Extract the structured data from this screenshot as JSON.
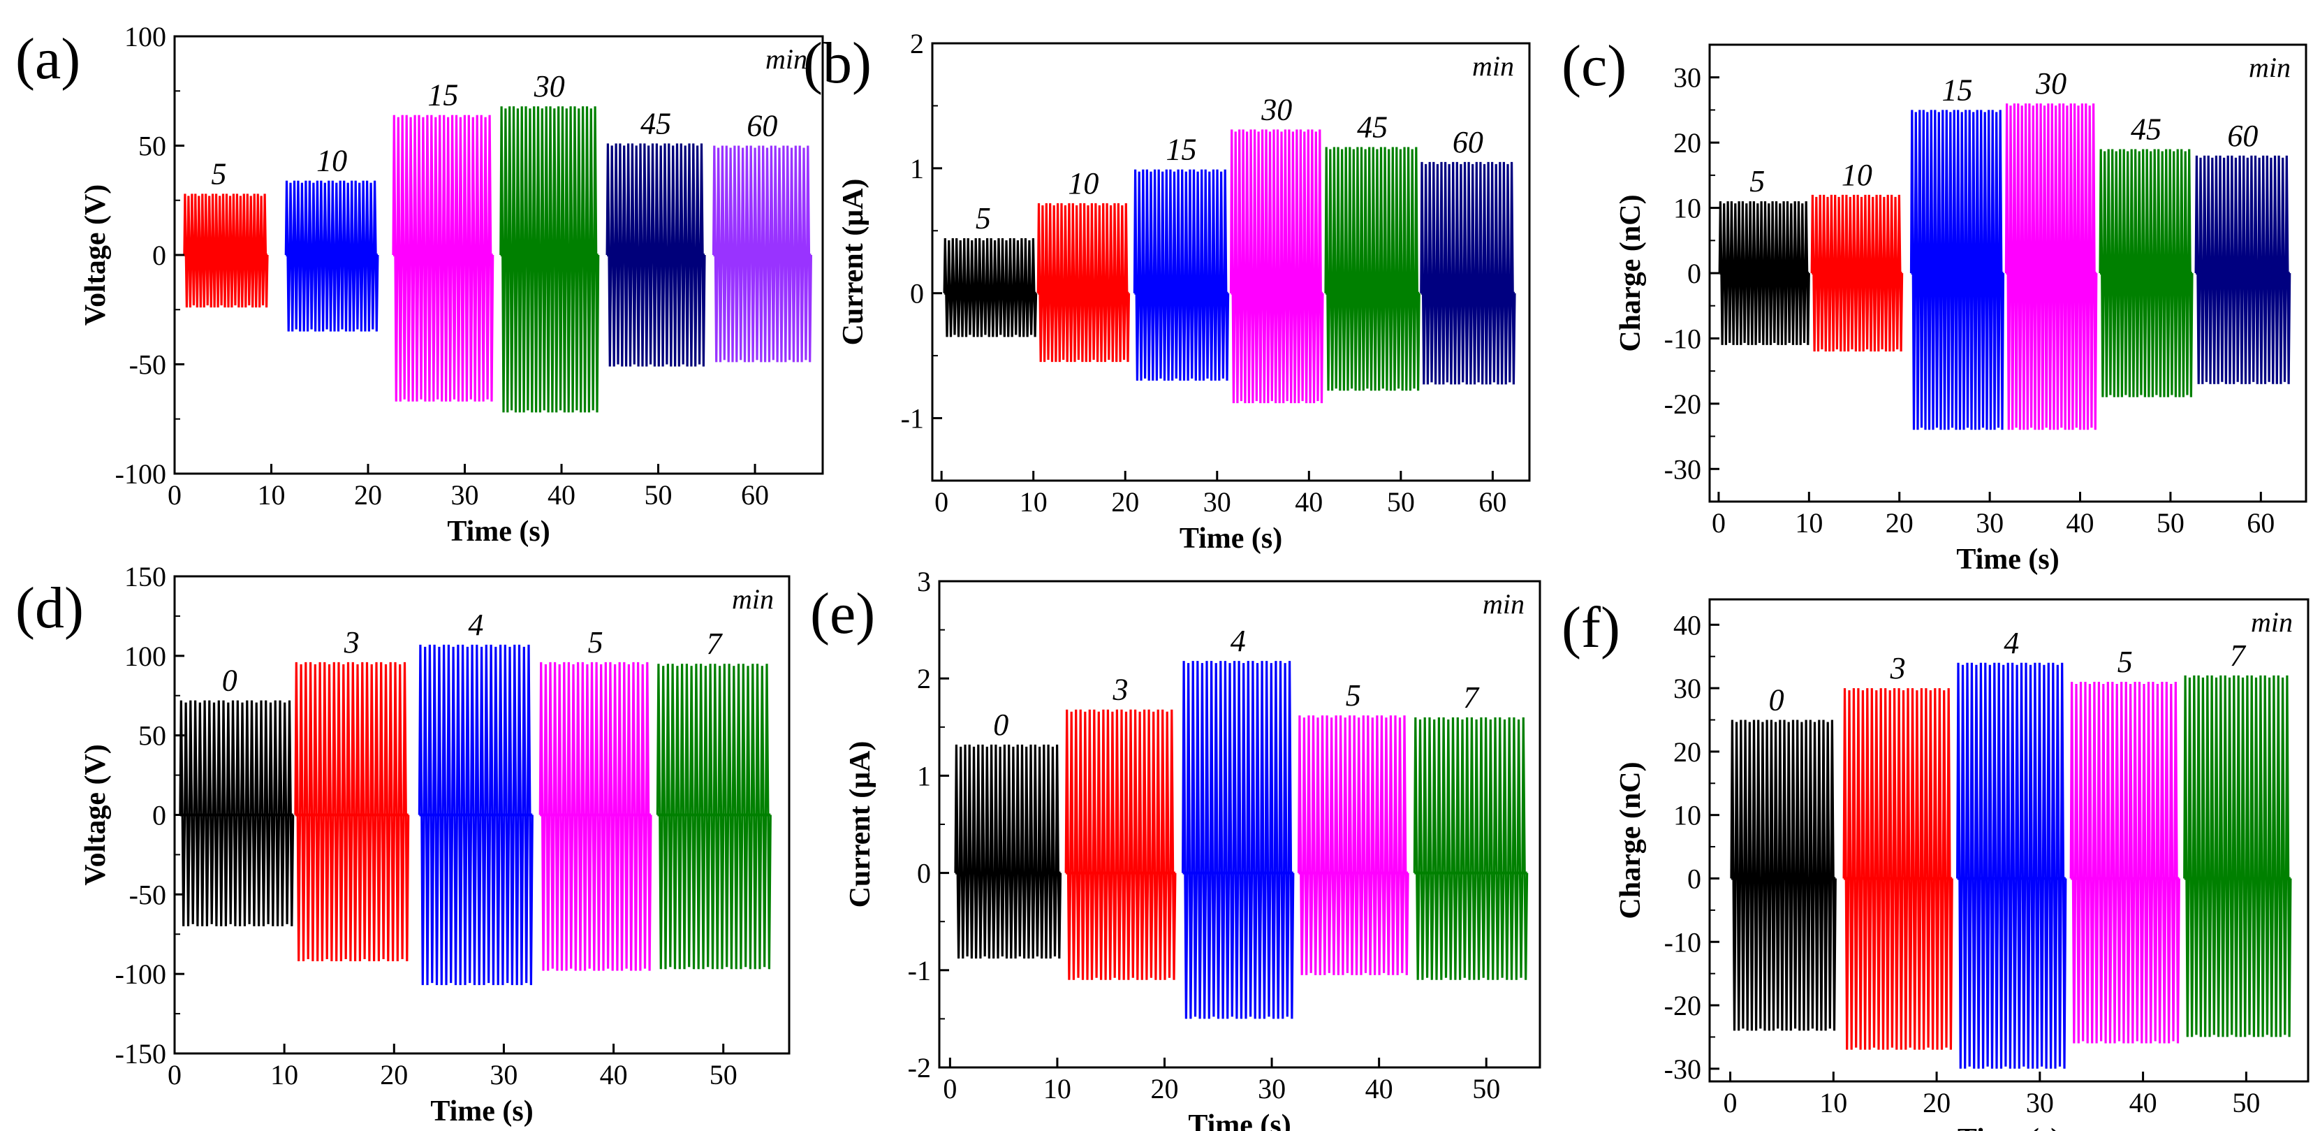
{
  "figure": {
    "unit_label": "min"
  },
  "chart_data": [
    {
      "type": "line",
      "panel": "(a)",
      "xlabel": "Time (s)",
      "ylabel": "Voltage (V)",
      "xlim": [
        0,
        67
      ],
      "ylim": [
        -100,
        100
      ],
      "xticks": [
        0,
        10,
        20,
        30,
        40,
        50,
        60
      ],
      "yticks": [
        -100,
        -50,
        0,
        50,
        100
      ],
      "blocks": [
        {
          "label": "5",
          "color": "#ff0000",
          "x0": 1.0,
          "x1": 9.6,
          "min": -24,
          "max": 28
        },
        {
          "label": "10",
          "color": "#0000ff",
          "x0": 11.5,
          "x1": 21.0,
          "min": -35,
          "max": 34
        },
        {
          "label": "15",
          "color": "#ff00ff",
          "x0": 22.6,
          "x1": 32.9,
          "min": -67,
          "max": 64
        },
        {
          "label": "30",
          "color": "#008000",
          "x0": 33.7,
          "x1": 43.8,
          "min": -72,
          "max": 68
        },
        {
          "label": "45",
          "color": "#00007a",
          "x0": 44.7,
          "x1": 54.8,
          "min": -51,
          "max": 51
        },
        {
          "label": "60",
          "color": "#9933ff",
          "x0": 55.7,
          "x1": 65.8,
          "min": -49,
          "max": 50
        }
      ]
    },
    {
      "type": "line",
      "panel": "(b)",
      "xlabel": "Time (s)",
      "ylabel": "Current (μA)",
      "xlim": [
        -1,
        64
      ],
      "ylim": [
        -1.5,
        2
      ],
      "xticks": [
        0,
        10,
        20,
        30,
        40,
        50,
        60
      ],
      "yticks": [
        -1,
        0,
        1,
        2
      ],
      "blocks": [
        {
          "label": "5",
          "color": "#000000",
          "x0": 0.3,
          "x1": 10.3,
          "min": -0.35,
          "max": 0.44
        },
        {
          "label": "10",
          "color": "#ff0000",
          "x0": 10.5,
          "x1": 20.4,
          "min": -0.55,
          "max": 0.72
        },
        {
          "label": "15",
          "color": "#0000ff",
          "x0": 21.0,
          "x1": 31.2,
          "min": -0.7,
          "max": 0.99
        },
        {
          "label": "30",
          "color": "#ff00ff",
          "x0": 31.5,
          "x1": 41.5,
          "min": -0.88,
          "max": 1.31
        },
        {
          "label": "45",
          "color": "#008000",
          "x0": 41.8,
          "x1": 52.0,
          "min": -0.78,
          "max": 1.17
        },
        {
          "label": "60",
          "color": "#000080",
          "x0": 52.2,
          "x1": 62.4,
          "min": -0.73,
          "max": 1.05
        }
      ]
    },
    {
      "type": "line",
      "panel": "(c)",
      "xlabel": "Time (s)",
      "ylabel": "Charge (nC)",
      "xlim": [
        -1,
        65
      ],
      "ylim": [
        -35,
        35
      ],
      "xticks": [
        0,
        10,
        20,
        30,
        40,
        50,
        60
      ],
      "yticks": [
        -30,
        -20,
        -10,
        0,
        10,
        20,
        30
      ],
      "blocks": [
        {
          "label": "5",
          "color": "#000000",
          "x0": 0.1,
          "x1": 10.0,
          "min": -11,
          "max": 11
        },
        {
          "label": "10",
          "color": "#ff0000",
          "x0": 10.3,
          "x1": 20.3,
          "min": -12,
          "max": 12
        },
        {
          "label": "15",
          "color": "#0000ff",
          "x0": 21.3,
          "x1": 31.5,
          "min": -24,
          "max": 25
        },
        {
          "label": "30",
          "color": "#ff00ff",
          "x0": 31.8,
          "x1": 41.8,
          "min": -24,
          "max": 26
        },
        {
          "label": "45",
          "color": "#008000",
          "x0": 42.2,
          "x1": 52.4,
          "min": -19,
          "max": 19
        },
        {
          "label": "60",
          "color": "#000080",
          "x0": 52.8,
          "x1": 63.2,
          "min": -17,
          "max": 18
        }
      ]
    },
    {
      "type": "line",
      "panel": "(d)",
      "xlabel": "Time (s)",
      "ylabel": "Voltage (V)",
      "xlim": [
        0,
        56
      ],
      "ylim": [
        -150,
        150
      ],
      "xticks": [
        0,
        10,
        20,
        30,
        40,
        50
      ],
      "yticks": [
        -150,
        -100,
        -50,
        0,
        50,
        100,
        150
      ],
      "blocks": [
        {
          "label": "0",
          "color": "#000000",
          "x0": 0.5,
          "x1": 10.8,
          "min": -70,
          "max": 72
        },
        {
          "label": "3",
          "color": "#ff0000",
          "x0": 11.0,
          "x1": 21.3,
          "min": -92,
          "max": 96
        },
        {
          "label": "4",
          "color": "#0000ff",
          "x0": 22.3,
          "x1": 32.6,
          "min": -107,
          "max": 107
        },
        {
          "label": "5",
          "color": "#ff00ff",
          "x0": 33.3,
          "x1": 43.4,
          "min": -98,
          "max": 96
        },
        {
          "label": "7",
          "color": "#008000",
          "x0": 44.0,
          "x1": 54.3,
          "min": -97,
          "max": 95
        }
      ]
    },
    {
      "type": "line",
      "panel": "(e)",
      "xlabel": "Time (s)",
      "ylabel": "Current (μA)",
      "xlim": [
        -1,
        55
      ],
      "ylim": [
        -2,
        3
      ],
      "xticks": [
        0,
        10,
        20,
        30,
        40,
        50
      ],
      "yticks": [
        -2,
        -1,
        0,
        1,
        2,
        3
      ],
      "blocks": [
        {
          "label": "0",
          "color": "#000000",
          "x0": 0.5,
          "x1": 10.3,
          "min": -0.88,
          "max": 1.32
        },
        {
          "label": "3",
          "color": "#ff0000",
          "x0": 10.8,
          "x1": 21.0,
          "min": -1.1,
          "max": 1.68
        },
        {
          "label": "4",
          "color": "#0000ff",
          "x0": 21.7,
          "x1": 32.0,
          "min": -1.5,
          "max": 2.18
        },
        {
          "label": "5",
          "color": "#ff00ff",
          "x0": 32.5,
          "x1": 42.7,
          "min": -1.05,
          "max": 1.62
        },
        {
          "label": "7",
          "color": "#008000",
          "x0": 43.3,
          "x1": 53.8,
          "min": -1.1,
          "max": 1.6
        }
      ]
    },
    {
      "type": "line",
      "panel": "(f)",
      "xlabel": "Time (s)",
      "ylabel": "Charge (nC)",
      "xlim": [
        -2,
        56
      ],
      "ylim": [
        -32,
        44
      ],
      "xticks": [
        0,
        10,
        20,
        30,
        40,
        50
      ],
      "yticks": [
        -30,
        -20,
        -10,
        0,
        10,
        20,
        30,
        40
      ],
      "blocks": [
        {
          "label": "0",
          "color": "#000000",
          "x0": 0.1,
          "x1": 10.2,
          "min": -24,
          "max": 25
        },
        {
          "label": "3",
          "color": "#ff0000",
          "x0": 11.0,
          "x1": 21.5,
          "min": -27,
          "max": 30
        },
        {
          "label": "4",
          "color": "#0000ff",
          "x0": 22.0,
          "x1": 32.5,
          "min": -30,
          "max": 34
        },
        {
          "label": "5",
          "color": "#ff00ff",
          "x0": 33.0,
          "x1": 43.5,
          "min": -26,
          "max": 31
        },
        {
          "label": "7",
          "color": "#008000",
          "x0": 44.0,
          "x1": 54.3,
          "min": -25,
          "max": 32
        }
      ]
    }
  ]
}
